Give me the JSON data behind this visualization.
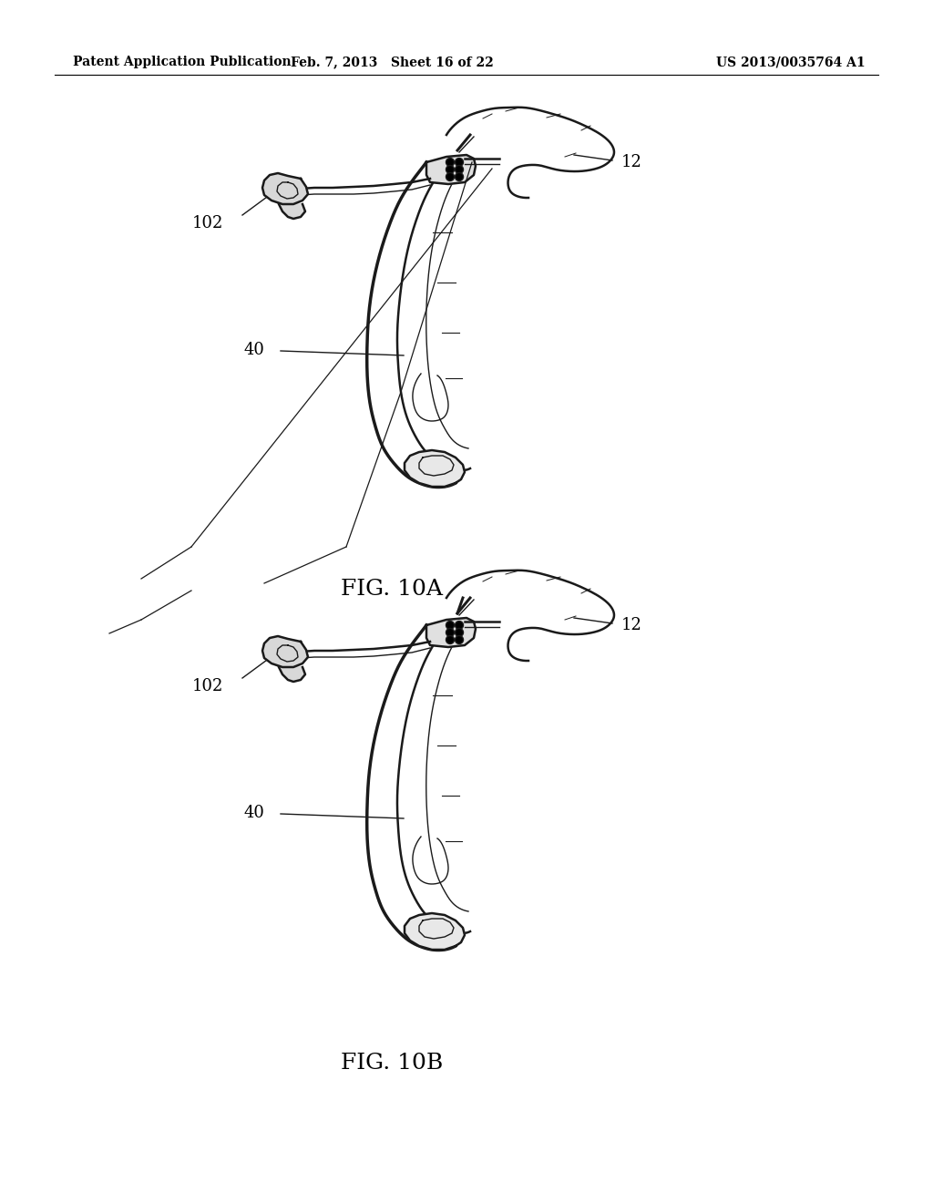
{
  "background_color": "#ffffff",
  "header_left": "Patent Application Publication",
  "header_center": "Feb. 7, 2013   Sheet 16 of 22",
  "header_right": "US 2013/0035764 A1",
  "fig10a_label": "FIG. 10A",
  "fig10b_label": "FIG. 10B",
  "line_color": "#1a1a1a",
  "lw_main": 1.8,
  "lw_thin": 1.0,
  "lw_xtra": 2.5
}
